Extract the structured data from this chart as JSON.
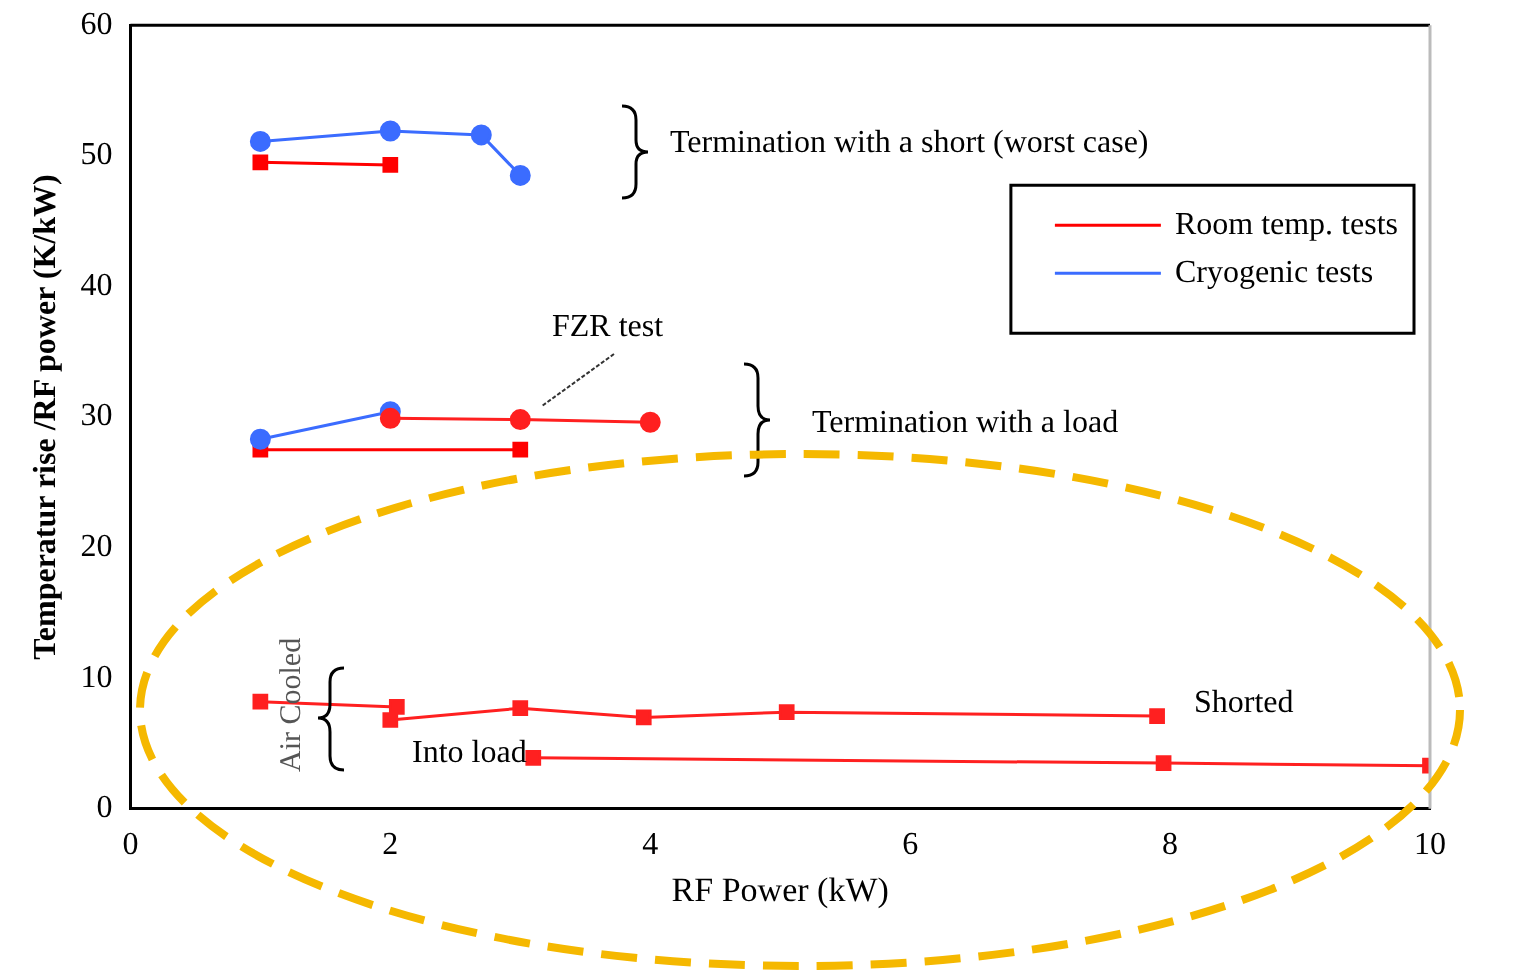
{
  "chart_data": {
    "type": "line",
    "xlabel": "RF Power (kW)",
    "ylabel": "Temperatur rise /RF power (K/kW)",
    "xlim": [
      0,
      10
    ],
    "xticks": [
      0,
      2,
      4,
      6,
      8,
      10
    ],
    "ylim": [
      0,
      60
    ],
    "yticks": [
      0,
      10,
      20,
      30,
      40,
      50,
      60
    ],
    "grid": false,
    "legend": "top right",
    "series": [
      {
        "name": "Room temp. tests",
        "color": "#ff0000",
        "marker": "square",
        "x": [
          1,
          2
        ],
        "values": [
          49.5,
          49.3
        ]
      },
      {
        "name": "Cryogenic tests",
        "color": "#3b6cff",
        "marker": "circle",
        "x": [
          1,
          2,
          2.7,
          3
        ],
        "values": [
          51.1,
          51.9,
          51.6,
          48.5
        ]
      },
      {
        "color": "#ff2020",
        "marker": "circle",
        "x": [
          2,
          3,
          4
        ],
        "values": [
          29.9,
          29.8,
          29.6
        ]
      },
      {
        "color": "#3b6cff",
        "marker": "circle",
        "x": [
          1,
          2
        ],
        "values": [
          28.3,
          30.4
        ]
      },
      {
        "color": "#ff0000",
        "marker": "square",
        "x": [
          1,
          3
        ],
        "values": [
          27.5,
          27.5
        ]
      },
      {
        "color": "#ff2020",
        "marker": "square",
        "x": [
          1,
          2.05,
          2,
          3,
          3.95,
          5.05,
          7.9
        ],
        "values": [
          8.2,
          7.8,
          6.8,
          7.7,
          7.0,
          7.4,
          7.1
        ]
      },
      {
        "color": "#ff2020",
        "marker": "square",
        "x": [
          3.1,
          7.95,
          10
        ],
        "values": [
          3.9,
          3.5,
          3.3
        ]
      }
    ],
    "annotations": [
      "Termination with a short (worst case)",
      "FZR test",
      "Termination with a load",
      "Shorted",
      "Into load",
      "Air Cooled"
    ]
  }
}
